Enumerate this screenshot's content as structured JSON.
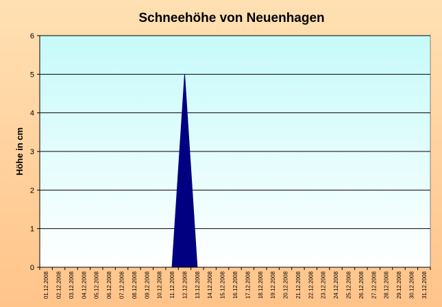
{
  "chart_data": {
    "type": "area",
    "title": "Schneehöhe von Neuenhagen",
    "ylabel": "Höhe in cm",
    "xlabel": "",
    "ylim": [
      0,
      6
    ],
    "yticks": [
      0,
      1,
      2,
      3,
      4,
      5,
      6
    ],
    "grid": true,
    "legend": "none",
    "colors": {
      "background_outer": "#FFCC99",
      "plot_top": "#C6FAFA",
      "plot_bottom": "#FFFFFF",
      "fill": "#000080",
      "gridline": "#000000"
    },
    "categories": [
      "01.12.2008",
      "02.12.2008",
      "03.12.2008",
      "04.12.2008",
      "05.12.2008",
      "06.12.2008",
      "07.12.2008",
      "08.12.2008",
      "09.12.2008",
      "10.12.2008",
      "11.12.2008",
      "12.12.2008",
      "13.12.2008",
      "14.12.2008",
      "15.12.2008",
      "16.12.2008",
      "17.12.2008",
      "18.12.2008",
      "19.12.2008",
      "20.12.2008",
      "21.12.2008",
      "22.12.2008",
      "23.12.2008",
      "24.12.2008",
      "25.12.2008",
      "26.12.2008",
      "27.12.2008",
      "28.12.2008",
      "29.12.2008",
      "30.12.2008",
      "31.12.2008"
    ],
    "values": [
      0,
      0,
      0,
      0,
      0,
      0,
      0,
      0,
      0,
      0,
      0,
      5,
      0,
      0,
      0,
      0,
      0,
      0,
      0,
      0,
      0,
      0,
      0,
      0,
      0,
      0,
      0,
      0,
      0,
      0,
      0
    ]
  }
}
